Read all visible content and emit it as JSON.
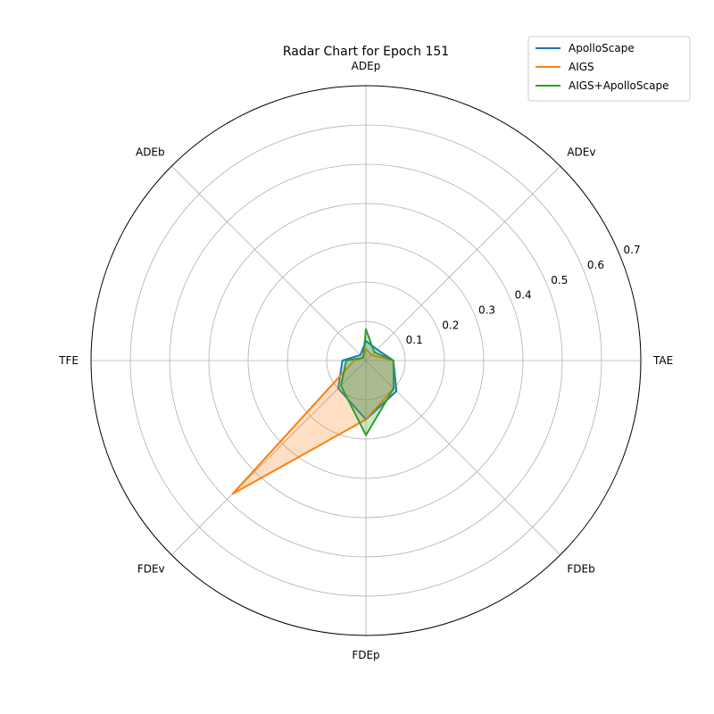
{
  "chart_data": {
    "type": "radar",
    "title": "Radar Chart for Epoch 151",
    "axes": [
      "ADEp",
      "ADEv",
      "TAE",
      "FDEb",
      "FDEp",
      "FDEv",
      "TFE",
      "ADEb"
    ],
    "rlim": [
      0,
      0.7
    ],
    "r_ticks": [
      0.1,
      0.2,
      0.3,
      0.4,
      0.5,
      0.6,
      0.7
    ],
    "grid": true,
    "legend_position": "top-right",
    "series": [
      {
        "name": "ApolloScape",
        "color": "#1f77b4",
        "values": [
          0.05,
          0.04,
          0.07,
          0.11,
          0.15,
          0.1,
          0.06,
          0.02
        ]
      },
      {
        "name": "AIGS",
        "color": "#ff7f0e",
        "values": [
          0.03,
          0.02,
          0.07,
          0.1,
          0.15,
          0.48,
          0.03,
          0.01
        ]
      },
      {
        "name": "AIGS+ApolloScape",
        "color": "#2ca02c",
        "values": [
          0.08,
          0.03,
          0.07,
          0.1,
          0.19,
          0.09,
          0.05,
          0.01
        ]
      }
    ]
  }
}
